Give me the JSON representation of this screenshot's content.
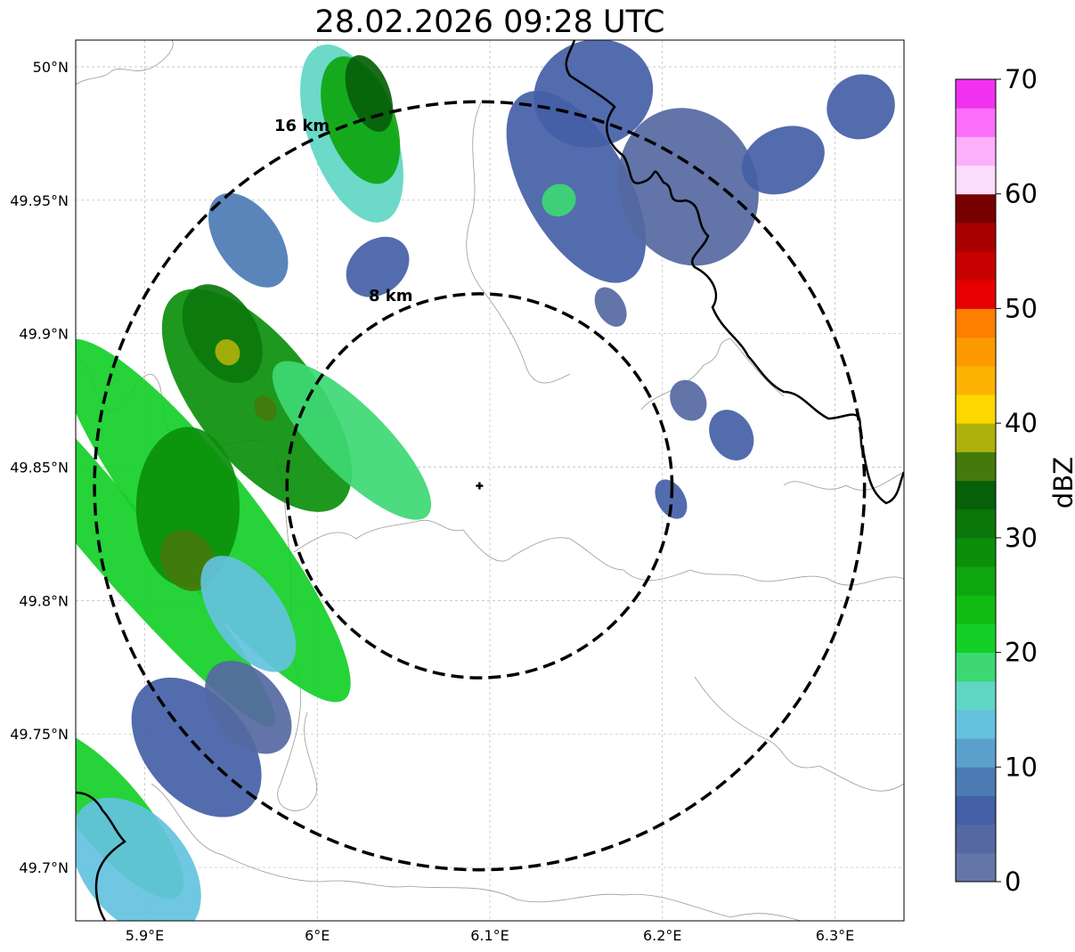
{
  "title": "28.02.2026 09:28 UTC",
  "map": {
    "lon_range": [
      5.86,
      6.34
    ],
    "lat_range": [
      49.68,
      50.01
    ],
    "lon_ticks": [
      {
        "value": 5.9,
        "label": "5.9°E"
      },
      {
        "value": 6.0,
        "label": "6°E"
      },
      {
        "value": 6.1,
        "label": "6.1°E"
      },
      {
        "value": 6.2,
        "label": "6.2°E"
      },
      {
        "value": 6.3,
        "label": "6.3°E"
      }
    ],
    "lat_ticks": [
      {
        "value": 50.0,
        "label": "50°N"
      },
      {
        "value": 49.95,
        "label": "49.95°N"
      },
      {
        "value": 49.9,
        "label": "49.9°N"
      },
      {
        "value": 49.85,
        "label": "49.85°N"
      },
      {
        "value": 49.8,
        "label": "49.8°N"
      },
      {
        "value": 49.75,
        "label": "49.75°N"
      },
      {
        "value": 49.7,
        "label": "49.7°N"
      }
    ],
    "gridlines": true,
    "center": {
      "lon": 6.094,
      "lat": 49.843
    },
    "rings": [
      {
        "radius_km": 8,
        "label": "8 km"
      },
      {
        "radius_km": 16,
        "label": "16 km"
      }
    ]
  },
  "colorbar": {
    "label": "dBZ",
    "min": 0,
    "max": 70,
    "tick_labels": [
      "0",
      "10",
      "20",
      "30",
      "40",
      "50",
      "60",
      "70"
    ],
    "colors": [
      "#6475a8",
      "#5568a1",
      "#445fa6",
      "#4c7bb4",
      "#5aa0cc",
      "#64c2de",
      "#5fd6c4",
      "#3dd873",
      "#14cf28",
      "#12bb12",
      "#0ea60e",
      "#0b8f0b",
      "#0b770b",
      "#06600a",
      "#447a0b",
      "#aeb10c",
      "#fcd700",
      "#fcb200",
      "#fc9a00",
      "#fc7f00",
      "#e60000",
      "#c80000",
      "#a80000",
      "#780000",
      "#fcdcfc",
      "#fcb0fc",
      "#fa6efa",
      "#f032f0"
    ]
  },
  "echo_legend": {
    "weak": "#4a65a8",
    "light": "#62bcd8",
    "moderate": "#14c828",
    "strong": "#0a7a0a",
    "heavy": "#c9b400"
  },
  "radar_echoes": [
    {
      "lon": 5.875,
      "lat": 49.83,
      "a": 0.02,
      "b": 0.1,
      "rot": -40,
      "dbz": 20
    },
    {
      "lon": 5.935,
      "lat": 49.83,
      "a": 0.03,
      "b": 0.085,
      "rot": -38,
      "dbz": 22
    },
    {
      "lon": 5.925,
      "lat": 49.835,
      "a": 0.03,
      "b": 0.03,
      "rot": 0,
      "dbz": 29
    },
    {
      "lon": 5.965,
      "lat": 49.875,
      "a": 0.035,
      "b": 0.05,
      "rot": -38,
      "dbz": 28
    },
    {
      "lon": 5.945,
      "lat": 49.9,
      "a": 0.02,
      "b": 0.02,
      "rot": -30,
      "dbz": 31
    },
    {
      "lon": 5.948,
      "lat": 49.893,
      "a": 0.007,
      "b": 0.005,
      "rot": -30,
      "dbz": 38
    },
    {
      "lon": 5.97,
      "lat": 49.872,
      "a": 0.006,
      "b": 0.005,
      "rot": -30,
      "dbz": 37
    },
    {
      "lon": 5.925,
      "lat": 49.815,
      "a": 0.015,
      "b": 0.012,
      "rot": -30,
      "dbz": 36
    },
    {
      "lon": 6.02,
      "lat": 49.86,
      "a": 0.02,
      "b": 0.04,
      "rot": -45,
      "dbz": 19
    },
    {
      "lon": 5.96,
      "lat": 49.795,
      "a": 0.02,
      "b": 0.025,
      "rot": -35,
      "dbz": 13
    },
    {
      "lon": 5.96,
      "lat": 49.935,
      "a": 0.018,
      "b": 0.02,
      "rot": -35,
      "dbz": 8
    },
    {
      "lon": 6.035,
      "lat": 49.925,
      "a": 0.02,
      "b": 0.01,
      "rot": -40,
      "dbz": 6
    },
    {
      "lon": 5.88,
      "lat": 49.72,
      "a": 0.02,
      "b": 0.04,
      "rot": -40,
      "dbz": 21
    },
    {
      "lon": 5.895,
      "lat": 49.7,
      "a": 0.03,
      "b": 0.03,
      "rot": -40,
      "dbz": 14
    },
    {
      "lon": 5.93,
      "lat": 49.745,
      "a": 0.03,
      "b": 0.03,
      "rot": -40,
      "dbz": 6
    },
    {
      "lon": 5.96,
      "lat": 49.76,
      "a": 0.02,
      "b": 0.02,
      "rot": -40,
      "dbz": 4
    },
    {
      "lon": 6.02,
      "lat": 49.975,
      "a": 0.025,
      "b": 0.035,
      "rot": -20,
      "dbz": 17
    },
    {
      "lon": 6.025,
      "lat": 49.98,
      "a": 0.02,
      "b": 0.025,
      "rot": -20,
      "dbz": 26
    },
    {
      "lon": 6.03,
      "lat": 49.99,
      "a": 0.012,
      "b": 0.015,
      "rot": -20,
      "dbz": 33
    },
    {
      "lon": 6.15,
      "lat": 49.955,
      "a": 0.03,
      "b": 0.04,
      "rot": -30,
      "dbz": 5
    },
    {
      "lon": 6.16,
      "lat": 49.99,
      "a": 0.035,
      "b": 0.02,
      "rot": -20,
      "dbz": 7
    },
    {
      "lon": 6.215,
      "lat": 49.955,
      "a": 0.04,
      "b": 0.03,
      "rot": -20,
      "dbz": 4
    },
    {
      "lon": 6.27,
      "lat": 49.965,
      "a": 0.025,
      "b": 0.012,
      "rot": -25,
      "dbz": 5
    },
    {
      "lon": 6.315,
      "lat": 49.985,
      "a": 0.02,
      "b": 0.012,
      "rot": -25,
      "dbz": 7
    },
    {
      "lon": 6.215,
      "lat": 49.875,
      "a": 0.01,
      "b": 0.008,
      "rot": -30,
      "dbz": 4
    },
    {
      "lon": 6.24,
      "lat": 49.862,
      "a": 0.012,
      "b": 0.01,
      "rot": -30,
      "dbz": 5
    },
    {
      "lon": 6.205,
      "lat": 49.838,
      "a": 0.008,
      "b": 0.008,
      "rot": -30,
      "dbz": 6
    },
    {
      "lon": 6.17,
      "lat": 49.91,
      "a": 0.008,
      "b": 0.008,
      "rot": -30,
      "dbz": 4
    },
    {
      "lon": 6.14,
      "lat": 49.95,
      "a": 0.01,
      "b": 0.006,
      "rot": -30,
      "dbz": 18
    }
  ]
}
